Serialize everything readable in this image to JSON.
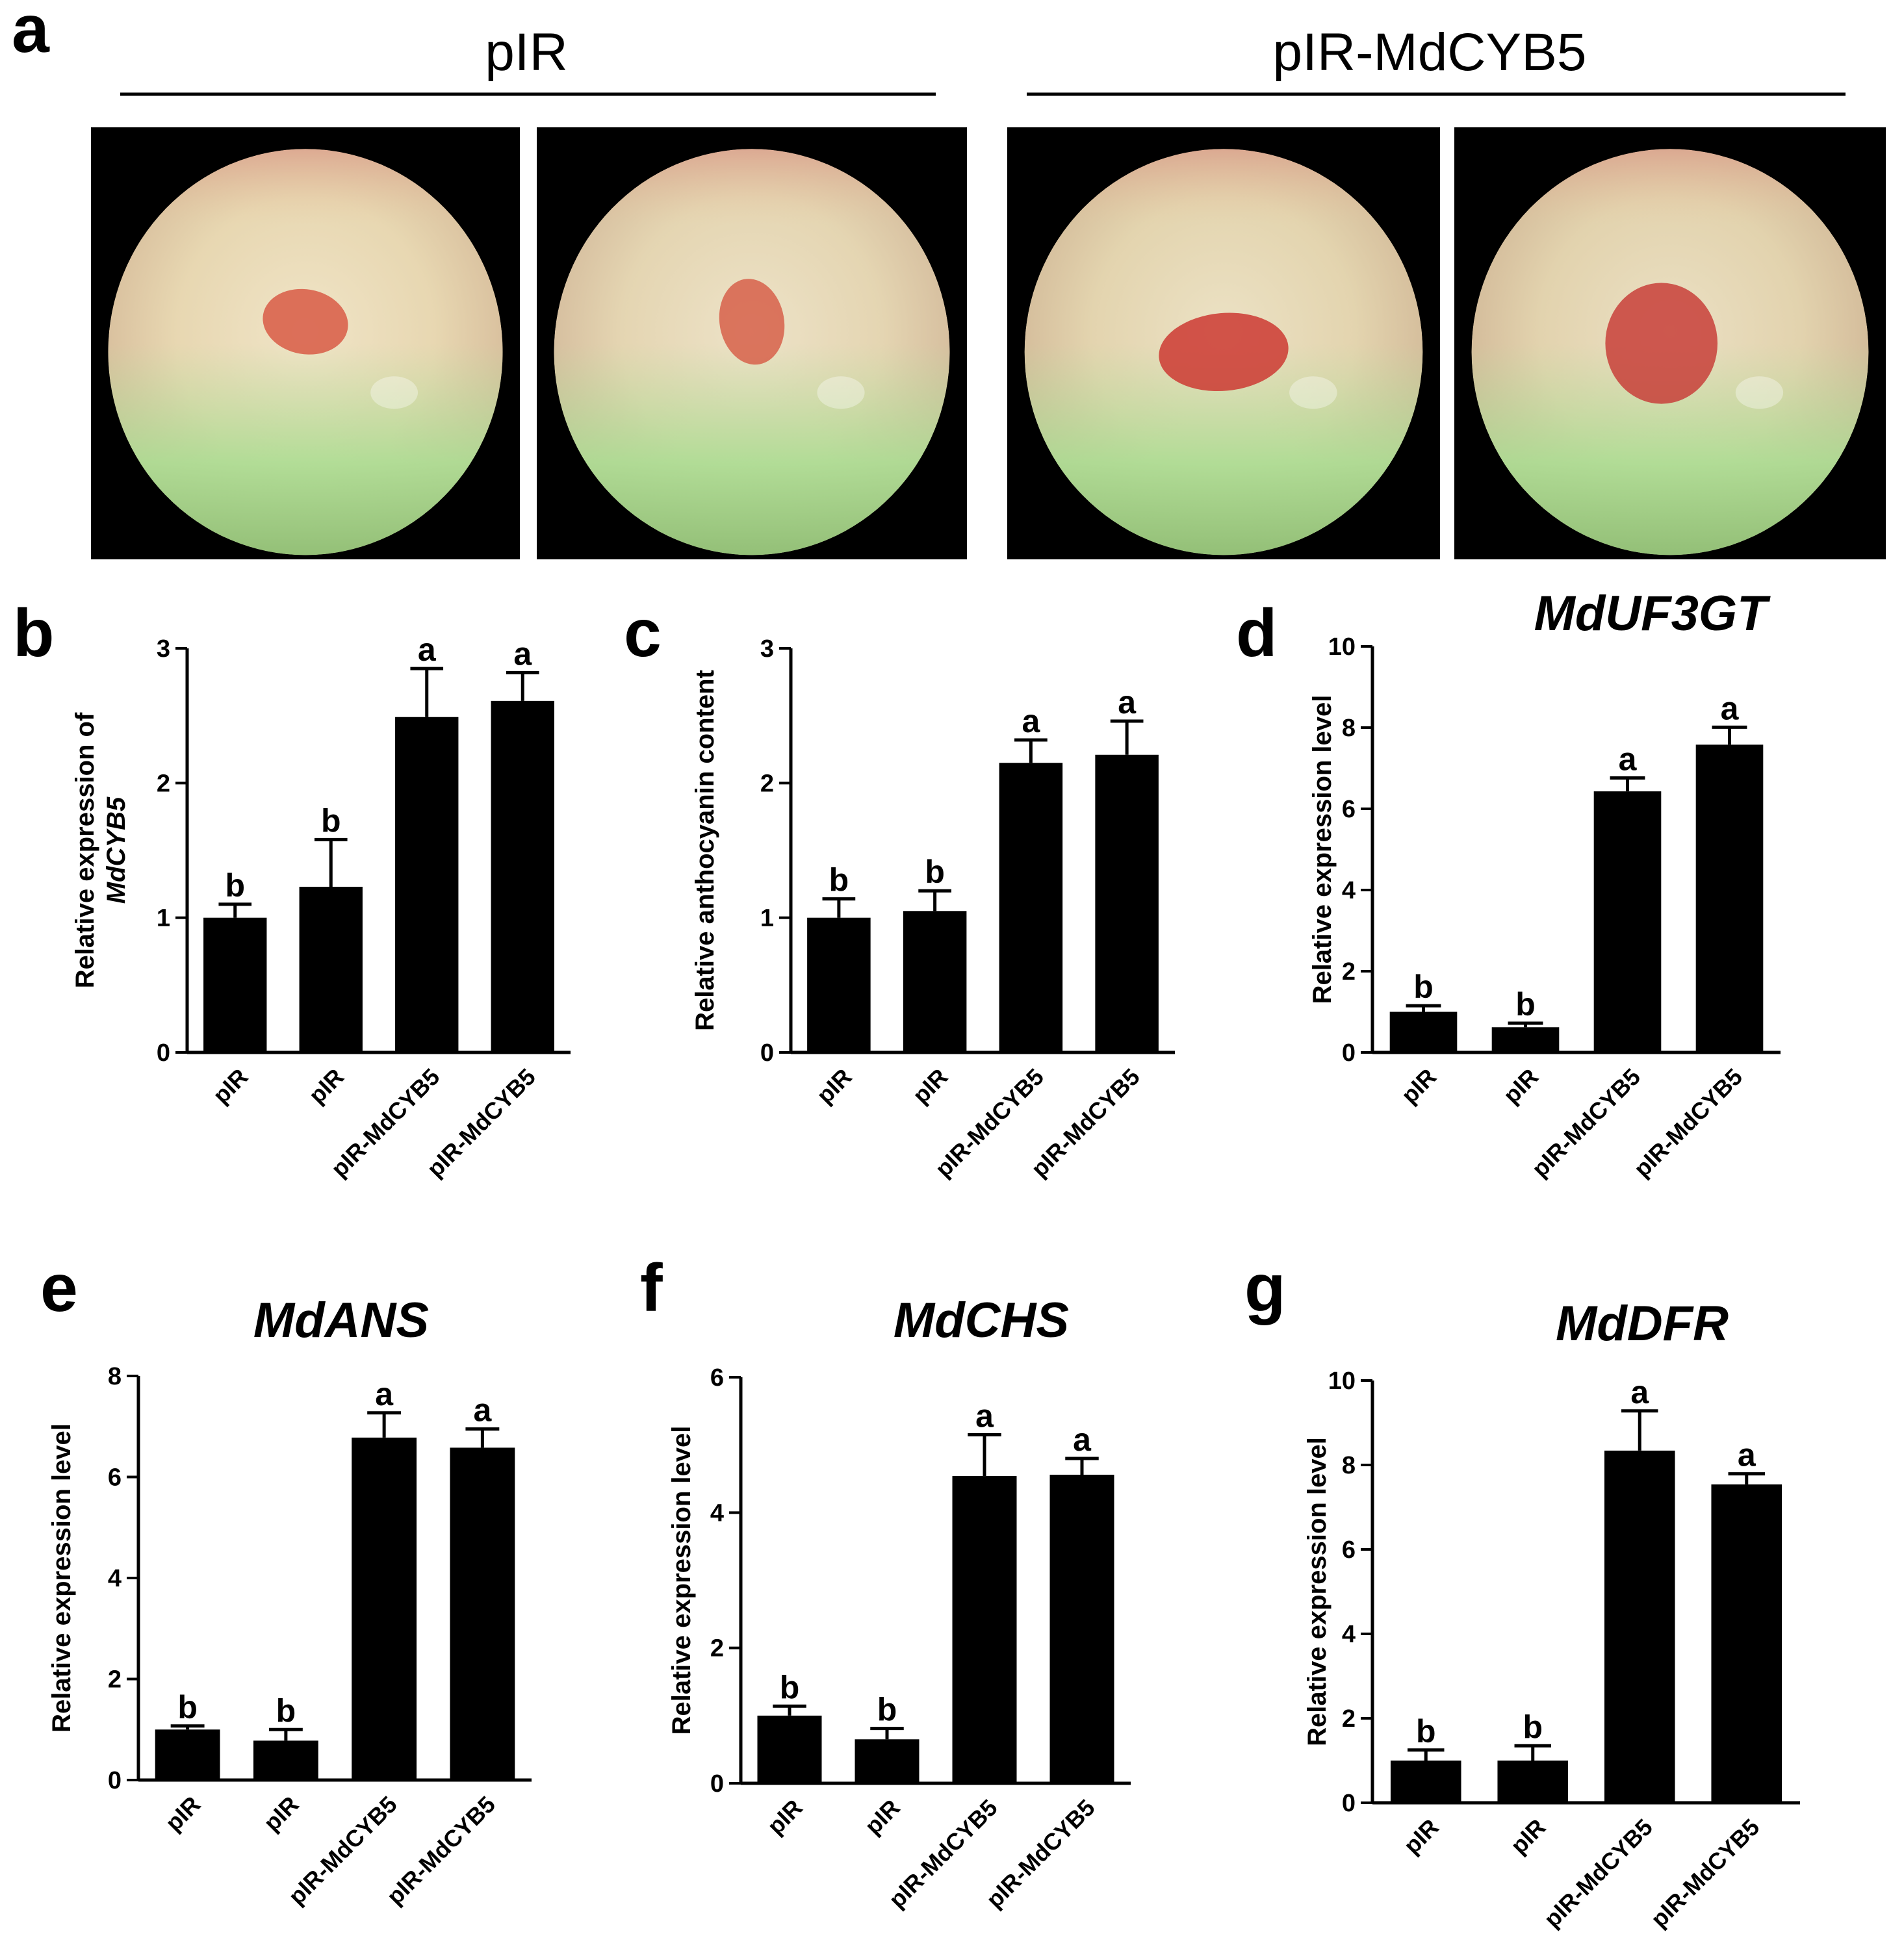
{
  "figure": {
    "panel_a": {
      "letter": "a",
      "groups": [
        {
          "label": "pIR"
        },
        {
          "label": "pIR-MdCYB5"
        }
      ],
      "photos": [
        {
          "group": "pIR",
          "apple_color": "#e6d2a8",
          "blush_color": "#d85a45"
        },
        {
          "group": "pIR",
          "apple_color": "#dcccaa",
          "blush_color": "#d7604a"
        },
        {
          "group": "pIR-MdCYB5",
          "apple_color": "#d8c9a0",
          "blush_color": "#cc3a33"
        },
        {
          "group": "pIR-MdCYB5",
          "apple_color": "#d5c49d",
          "blush_color": "#c8403a"
        }
      ]
    }
  },
  "colors": {
    "bar": "#000000",
    "photo_bg": "#000000",
    "text": "#000000"
  },
  "chart_data": [
    {
      "panel": "b",
      "type": "bar",
      "title": "",
      "ylabel_lines": [
        "Relative expression of",
        "MdCYB5"
      ],
      "categories": [
        "pIR",
        "pIR",
        "pIR-MdCYB5",
        "pIR-MdCYB5"
      ],
      "values": [
        1.0,
        1.23,
        2.49,
        2.61
      ],
      "errors": [
        0.1,
        0.35,
        0.36,
        0.21
      ],
      "labels": [
        "b",
        "b",
        "a",
        "a"
      ],
      "ylim": [
        0,
        3
      ],
      "yticks": [
        0,
        1,
        2,
        3
      ]
    },
    {
      "panel": "c",
      "type": "bar",
      "title": "",
      "ylabel_lines": [
        "Relative anthocyanin content"
      ],
      "categories": [
        "pIR",
        "pIR",
        "pIR-MdCYB5",
        "pIR-MdCYB5"
      ],
      "values": [
        1.0,
        1.05,
        2.15,
        2.21
      ],
      "errors": [
        0.14,
        0.15,
        0.17,
        0.25
      ],
      "labels": [
        "b",
        "b",
        "a",
        "a"
      ],
      "ylim": [
        0,
        3
      ],
      "yticks": [
        0,
        1,
        2,
        3
      ]
    },
    {
      "panel": "d",
      "type": "bar",
      "title": "MdUF3GT",
      "ylabel_lines": [
        "Relative expression level"
      ],
      "categories": [
        "pIR",
        "pIR",
        "pIR-MdCYB5",
        "pIR-MdCYB5"
      ],
      "values": [
        1.0,
        0.62,
        6.43,
        7.58
      ],
      "errors": [
        0.15,
        0.1,
        0.33,
        0.43
      ],
      "labels": [
        "b",
        "b",
        "a",
        "a"
      ],
      "ylim": [
        0,
        10
      ],
      "yticks": [
        0,
        2,
        4,
        6,
        8,
        10
      ]
    },
    {
      "panel": "e",
      "type": "bar",
      "title": "MdANS",
      "ylabel_lines": [
        "Relative expression level"
      ],
      "categories": [
        "pIR",
        "pIR",
        "pIR-MdCYB5",
        "pIR-MdCYB5"
      ],
      "values": [
        1.0,
        0.78,
        6.78,
        6.58
      ],
      "errors": [
        0.07,
        0.22,
        0.49,
        0.37
      ],
      "labels": [
        "b",
        "b",
        "a",
        "a"
      ],
      "ylim": [
        0,
        8
      ],
      "yticks": [
        0,
        2,
        4,
        6,
        8
      ]
    },
    {
      "panel": "f",
      "type": "bar",
      "title": "MdCHS",
      "ylabel_lines": [
        "Relative expression level"
      ],
      "categories": [
        "pIR",
        "pIR",
        "pIR-MdCYB5",
        "pIR-MdCYB5"
      ],
      "values": [
        1.0,
        0.65,
        4.54,
        4.56
      ],
      "errors": [
        0.14,
        0.16,
        0.61,
        0.24
      ],
      "labels": [
        "b",
        "b",
        "a",
        "a"
      ],
      "ylim": [
        0,
        6
      ],
      "yticks": [
        0,
        2,
        4,
        6
      ]
    },
    {
      "panel": "g",
      "type": "bar",
      "title": "MdDFR",
      "ylabel_lines": [
        "Relative expression level"
      ],
      "categories": [
        "pIR",
        "pIR",
        "pIR-MdCYB5",
        "pIR-MdCYB5"
      ],
      "values": [
        1.0,
        1.0,
        8.34,
        7.54
      ],
      "errors": [
        0.25,
        0.35,
        0.94,
        0.25
      ],
      "labels": [
        "b",
        "b",
        "a",
        "a"
      ],
      "ylim": [
        0,
        10
      ],
      "yticks": [
        0,
        2,
        4,
        6,
        8,
        10
      ]
    }
  ]
}
